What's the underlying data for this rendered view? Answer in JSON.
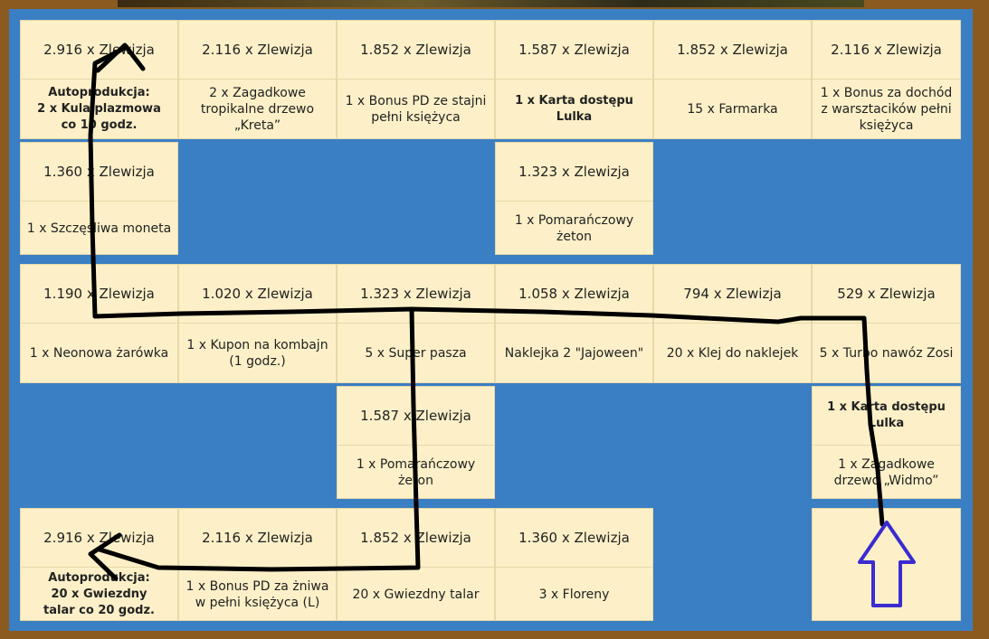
{
  "board": {
    "rows": [
      [
        {
          "cost": "2.916 x Zlewizja",
          "reward": "Autoprodukcja:\n2 x Kula plazmowa\nco 10 godz.",
          "bold": true
        },
        {
          "cost": "2.116 x Zlewizja",
          "reward": "2 x Zagadkowe tropikalne drzewo „Kreta”"
        },
        {
          "cost": "1.852 x Zlewizja",
          "reward": "1 x Bonus PD ze stajni pełni księżyca"
        },
        {
          "cost": "1.587 x Zlewizja",
          "reward": "1 x Karta dostępu Lulka",
          "bold": true
        },
        {
          "cost": "1.852 x Zlewizja",
          "reward": "15 x Farmarka"
        },
        {
          "cost": "2.116 x Zlewizja",
          "reward": "1 x Bonus za dochód z warsztacików pełni księżyca"
        }
      ],
      [
        {
          "cost": "1.360 x Zlewizja",
          "reward": "1 x Szczęśliwa moneta"
        },
        null,
        null,
        {
          "cost": "1.323 x Zlewizja",
          "reward": "1 x Pomarańczowy żeton"
        },
        null,
        null
      ],
      [
        {
          "cost": "1.190 x Zlewizja",
          "reward": "1 x Neonowa żarówka"
        },
        {
          "cost": "1.020 x Zlewizja",
          "reward": "1 x Kupon na kombajn (1 godz.)"
        },
        {
          "cost": "1.323 x Zlewizja",
          "reward": "5 x Super pasza"
        },
        {
          "cost": "1.058 x Zlewizja",
          "reward": "Naklejka 2 \"Jajoween\""
        },
        {
          "cost": "794 x Zlewizja",
          "reward": "20 x Klej do naklejek"
        },
        {
          "cost": "529 x Zlewizja",
          "reward": "5 x Turbo nawóz Zosi"
        }
      ],
      [
        null,
        null,
        {
          "cost": "1.587 x Zlewizja",
          "reward": "1 x Pomarańczowy żeton"
        },
        null,
        null,
        {
          "top": "1 x Karta dostępu Lulka",
          "reward": "1 x Zagadkowe drzewo „Widmo”"
        }
      ],
      [
        {
          "cost": "2.916 x Zlewizja",
          "reward": "Autoprodukcja:\n20 x Gwiezdny\ntalar co 20 godz.",
          "bold": true
        },
        {
          "cost": "2.116 x Zlewizja",
          "reward": "1 x Bonus PD za żniwa w pełni księżyca (L)"
        },
        {
          "cost": "1.852 x Zlewizja",
          "reward": "20 x Gwiezdny talar"
        },
        {
          "cost": "1.360 x Zlewizja",
          "reward": "3 x Floreny"
        },
        null,
        {
          "start": true
        }
      ]
    ]
  },
  "colors": {
    "tile": "#fdf0c8",
    "empty": "#3a7fc4",
    "frame": "#8b5a1f",
    "path": "#000000",
    "start_arrow": "#3b2bd1"
  },
  "icons": {
    "start": "up-arrow-icon",
    "path_end": "arrowhead-icon"
  }
}
